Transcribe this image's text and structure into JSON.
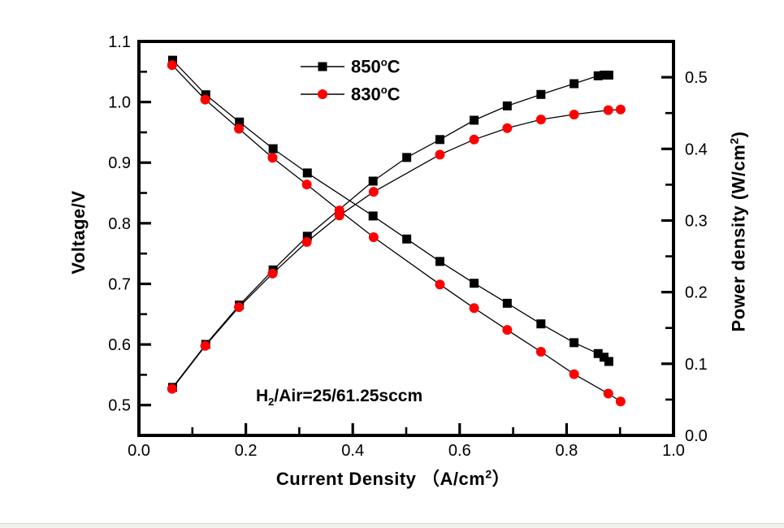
{
  "page": {
    "background": "#ffffff",
    "bottom_strip_color": "#f2f1ed"
  },
  "chart_data": {
    "type": "line",
    "title": "",
    "x_axis": {
      "label_pre": "Current Density （A/cm",
      "label_sup": "2",
      "label_post": "）",
      "range": [
        0.0,
        1.0
      ],
      "major_ticks": [
        0.0,
        0.2,
        0.4,
        0.6,
        0.8,
        1.0
      ],
      "tick_labels": [
        "0.0",
        "0.2",
        "0.4",
        "0.6",
        "0.8",
        "1.0"
      ],
      "minor_ticks": [
        0.1,
        0.3,
        0.5,
        0.7,
        0.9
      ]
    },
    "y_left": {
      "label": "Voltage/V",
      "range": [
        0.45,
        1.1
      ],
      "major_ticks": [
        0.5,
        0.6,
        0.7,
        0.8,
        0.9,
        1.0,
        1.1
      ],
      "tick_labels": [
        "0.5",
        "0.6",
        "0.7",
        "0.8",
        "0.9",
        "1.0",
        "1.1"
      ],
      "minor_ticks": [
        0.55,
        0.65,
        0.75,
        0.85,
        0.95,
        1.05
      ]
    },
    "y_right": {
      "label_pre": "Power density (W/cm",
      "label_sup": "2",
      "label_post": ")",
      "range": [
        0.0,
        0.55
      ],
      "major_ticks": [
        0.0,
        0.1,
        0.2,
        0.3,
        0.4,
        0.5
      ],
      "tick_labels": [
        "0.0",
        "0.1",
        "0.2",
        "0.3",
        "0.4",
        "0.5"
      ],
      "minor_ticks": [
        0.05,
        0.15,
        0.25,
        0.35,
        0.45
      ]
    },
    "legend": {
      "items": [
        {
          "value": "850",
          "sup": "o",
          "unit": "C",
          "marker": "square",
          "color": "#000000"
        },
        {
          "value": "830",
          "sup": "o",
          "unit": "C",
          "marker": "circle",
          "color": "#ff0000"
        }
      ]
    },
    "annotation": {
      "pre": "H",
      "sub": "2",
      "post": "/Air=25/61.25sccm"
    },
    "line_color": "#000000",
    "series": [
      {
        "name": "850C-voltage",
        "legend": "850°C",
        "axis": "left",
        "marker": "square",
        "color": "#000000",
        "x": [
          0.063,
          0.125,
          0.188,
          0.251,
          0.315,
          0.438,
          0.501,
          0.563,
          0.627,
          0.689,
          0.752,
          0.814,
          0.859,
          0.87,
          0.879
        ],
        "y": [
          1.069,
          1.012,
          0.967,
          0.923,
          0.883,
          0.812,
          0.774,
          0.737,
          0.701,
          0.668,
          0.634,
          0.603,
          0.585,
          0.579,
          0.572
        ]
      },
      {
        "name": "850C-power",
        "legend": "850°C",
        "axis": "right",
        "marker": "square",
        "color": "#000000",
        "x": [
          0.063,
          0.125,
          0.188,
          0.251,
          0.315,
          0.438,
          0.501,
          0.563,
          0.627,
          0.689,
          0.752,
          0.814,
          0.859,
          0.87,
          0.879
        ],
        "y": [
          0.067,
          0.127,
          0.182,
          0.231,
          0.278,
          0.355,
          0.388,
          0.413,
          0.44,
          0.46,
          0.476,
          0.491,
          0.502,
          0.503,
          0.503
        ]
      },
      {
        "name": "830C-voltage",
        "legend": "830°C",
        "axis": "left",
        "marker": "circle",
        "color": "#ff0000",
        "x": [
          0.062,
          0.124,
          0.187,
          0.25,
          0.314,
          0.375,
          0.439,
          0.563,
          0.627,
          0.689,
          0.752,
          0.814,
          0.878,
          0.901
        ],
        "y": [
          1.061,
          1.004,
          0.956,
          0.908,
          0.864,
          0.821,
          0.777,
          0.699,
          0.66,
          0.624,
          0.588,
          0.551,
          0.519,
          0.506
        ]
      },
      {
        "name": "830C-power",
        "legend": "830°C",
        "axis": "right",
        "marker": "circle",
        "color": "#ff0000",
        "x": [
          0.062,
          0.124,
          0.187,
          0.25,
          0.314,
          0.375,
          0.439,
          0.563,
          0.627,
          0.689,
          0.752,
          0.814,
          0.878,
          0.901
        ],
        "y": [
          0.065,
          0.125,
          0.179,
          0.226,
          0.27,
          0.307,
          0.34,
          0.392,
          0.413,
          0.429,
          0.441,
          0.448,
          0.454,
          0.455
        ]
      }
    ]
  }
}
